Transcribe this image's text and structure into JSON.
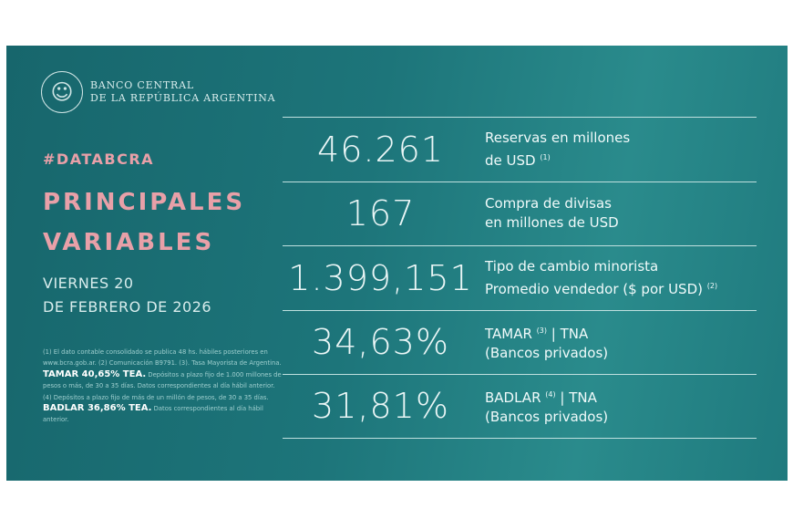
{
  "header": {
    "bank_line1": "BANCO CENTRAL",
    "bank_line2": "DE LA REPÚBLICA ARGENTINA",
    "hashtag": "#DATABCRA",
    "title_line1": "PRINCIPALES",
    "title_line2": "VARIABLES",
    "date_line1": "VIERNES 20",
    "date_line2": "DE FEBRERO DE 2026"
  },
  "rows": [
    {
      "value": "46.261",
      "label1": "Reservas en millones",
      "label2": "de USD",
      "sup": "(1)"
    },
    {
      "value": "167",
      "label1": "Compra de divisas",
      "label2": "en millones de USD",
      "sup": ""
    },
    {
      "value": "1.399,151",
      "label1": "Tipo de cambio minorista",
      "label2": "Promedio vendedor ($ por USD)",
      "sup": "(2)"
    },
    {
      "value": "34,63%",
      "label1a": "TAMAR",
      "sup": "(3)",
      "label1b": "| TNA",
      "label2": "(Bancos privados)"
    },
    {
      "value": "31,81%",
      "label1a": "BADLAR",
      "sup": "(4)",
      "label1b": "| TNA",
      "label2": "(Bancos privados)"
    }
  ],
  "notes": {
    "p1": "(1) El dato contable consolidado se publica 48 hs. hábiles posteriores en www.bcra.gob.ar. (2) Comunicación B9791. (3). Tasa Mayorista de Argentina.",
    "tamar": "TAMAR 40,65% TEA.",
    "p2": "Depósitos a plazo fijo de 1.000 millones de pesos o más, de 30 a 35 días. Datos correspondientes al día hábil anterior. (4) Depósitos a plazo fijo de más de un millón de pesos, de 30 a 35 días.",
    "badlar": "BADLAR 36,86% TEA.",
    "p3": "Datos correspondientes al día hábil anterior."
  },
  "colors": {
    "panel": "#1d757a",
    "accent": "#e8a0a8"
  }
}
